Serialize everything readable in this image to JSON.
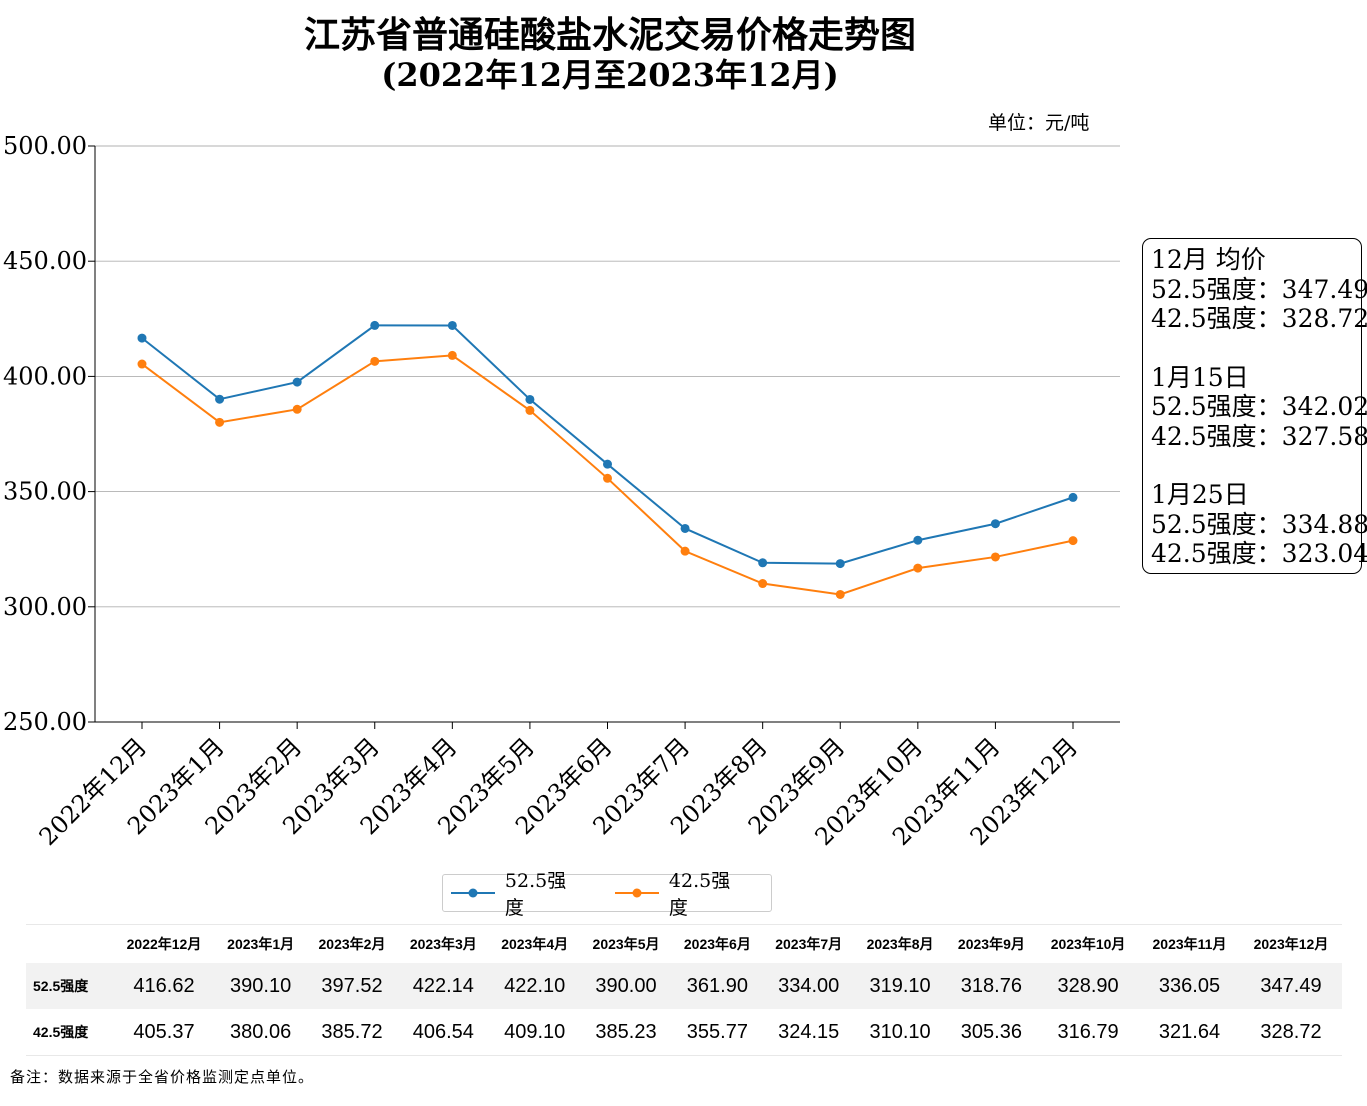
{
  "title_line1": "江苏省普通硅酸盐水泥交易价格走势图",
  "title_line2": "(2022年12月至2023年12月)",
  "unit_label": "单位：元/吨",
  "chart_data": {
    "type": "line",
    "categories": [
      "2022年12月",
      "2023年1月",
      "2023年2月",
      "2023年3月",
      "2023年4月",
      "2023年5月",
      "2023年6月",
      "2023年7月",
      "2023年8月",
      "2023年9月",
      "2023年10月",
      "2023年11月",
      "2023年12月"
    ],
    "series": [
      {
        "name": "52.5强度",
        "color": "#1f77b4",
        "values": [
          416.62,
          390.1,
          397.52,
          422.14,
          422.1,
          390.0,
          361.9,
          334.0,
          319.1,
          318.76,
          328.9,
          336.05,
          347.49
        ]
      },
      {
        "name": "42.5强度",
        "color": "#ff7f0e",
        "values": [
          405.37,
          380.06,
          385.72,
          406.54,
          409.1,
          385.23,
          355.77,
          324.15,
          310.1,
          305.36,
          316.79,
          321.64,
          328.72
        ]
      }
    ],
    "ylim": [
      250,
      500
    ],
    "yticks": [
      "250.00",
      "300.00",
      "350.00",
      "400.00",
      "450.00",
      "500.00"
    ],
    "grid": "horizontal",
    "legend_position": "bottom-center"
  },
  "notes": [
    {
      "heading": "12月 均价",
      "rows": [
        {
          "label": "52.5强度：",
          "value": "347.49"
        },
        {
          "label": "42.5强度：",
          "value": "328.72"
        }
      ]
    },
    {
      "heading": "1月15日",
      "rows": [
        {
          "label": "52.5强度：",
          "value": "342.02"
        },
        {
          "label": "42.5强度：",
          "value": "327.58"
        }
      ]
    },
    {
      "heading": "1月25日",
      "rows": [
        {
          "label": "52.5强度：",
          "value": "334.88"
        },
        {
          "label": "42.5强度：",
          "value": "323.04"
        }
      ]
    }
  ],
  "table": {
    "columns": [
      "2022年12月",
      "2023年1月",
      "2023年2月",
      "2023年3月",
      "2023年4月",
      "2023年5月",
      "2023年6月",
      "2023年7月",
      "2023年8月",
      "2023年9月",
      "2023年10月",
      "2023年11月",
      "2023年12月"
    ],
    "rows": [
      {
        "label": "52.5强度",
        "values": [
          "416.62",
          "390.10",
          "397.52",
          "422.14",
          "422.10",
          "390.00",
          "361.90",
          "334.00",
          "319.10",
          "318.76",
          "328.90",
          "336.05",
          "347.49"
        ]
      },
      {
        "label": "42.5强度",
        "values": [
          "405.37",
          "380.06",
          "385.72",
          "406.54",
          "409.10",
          "385.23",
          "355.77",
          "324.15",
          "310.10",
          "305.36",
          "316.79",
          "321.64",
          "328.72"
        ]
      }
    ]
  },
  "footnote": "备注：数据来源于全省价格监测定点单位。"
}
